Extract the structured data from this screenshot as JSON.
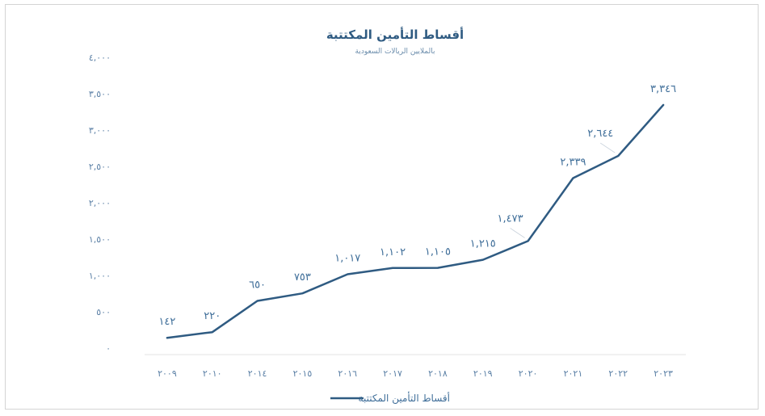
{
  "chart_data": {
    "type": "line",
    "title": "أقساط التأمين المكتتبة",
    "subtitle": "بالملايين الريالات السعودية",
    "categories": [
      "٢٠٠٩",
      "٢٠١٠",
      "٢٠١٤",
      "٢٠١٥",
      "٢٠١٦",
      "٢٠١٧",
      "٢٠١٨",
      "٢٠١٩",
      "٢٠٢٠",
      "٢٠٢١",
      "٢٠٢٢",
      "٢٠٢٣"
    ],
    "series": [
      {
        "name": "أقساط التأمين المكتتبة",
        "values": [
          142,
          220,
          650,
          753,
          1017,
          1102,
          1105,
          1215,
          1473,
          2339,
          2644,
          3346
        ],
        "labels": [
          "١٤٢",
          "٢٢٠",
          "٦٥٠",
          "٧٥٣",
          "١,٠١٧",
          "١,١٠٢",
          "١,١٠٥",
          "١,٢١٥",
          "١,٤٧٣",
          "٢,٣٣٩",
          "٢,٦٤٤",
          "٣,٣٤٦"
        ],
        "color": "#2f5b82"
      }
    ],
    "ylim": [
      0,
      4000
    ],
    "yticks": [
      0,
      500,
      1000,
      1500,
      2000,
      2500,
      3000,
      3500,
      4000
    ],
    "ytick_labels": [
      "٠",
      "٥٠٠",
      "١,٠٠٠",
      "١,٥٠٠",
      "٢,٠٠٠",
      "٢,٥٠٠",
      "٣,٠٠٠",
      "٣,٥٠٠",
      "٤,٠٠٠"
    ],
    "grid": false,
    "legend": "bottom"
  }
}
